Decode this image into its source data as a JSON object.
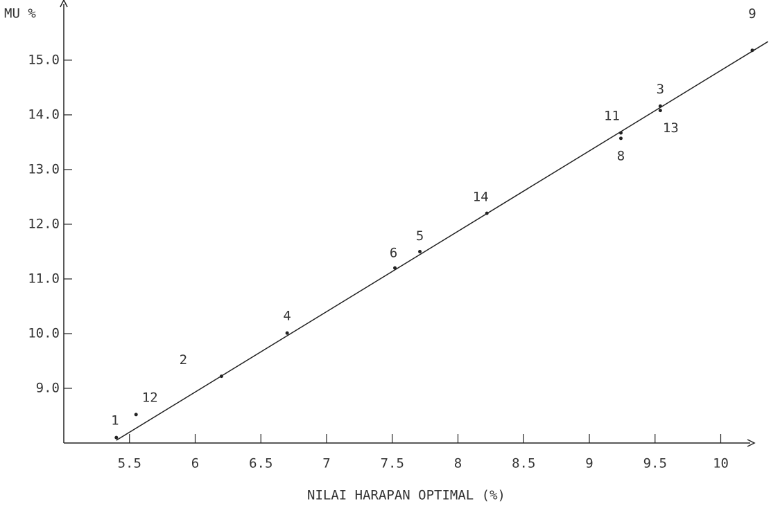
{
  "chart_data": {
    "type": "scatter",
    "x_label": "NILAI HARAPAN OPTIMAL (%)",
    "y_label": "MU %",
    "xlim": [
      5,
      10.24
    ],
    "ylim": [
      8,
      16.1
    ],
    "xticks": [
      5.5,
      6,
      6.5,
      7,
      7.5,
      8,
      8.5,
      9,
      9.5,
      10
    ],
    "yticks": [
      {
        "value": 9,
        "label": "9.0"
      },
      {
        "value": 10,
        "label": "10.0"
      },
      {
        "value": 11,
        "label": "11.0"
      },
      {
        "value": 12,
        "label": "12.0"
      },
      {
        "value": 13,
        "label": "13.0"
      },
      {
        "value": 14,
        "label": "14.0"
      },
      {
        "value": 15,
        "label": "15.0"
      }
    ],
    "color": "#222222",
    "series": [
      {
        "labels": [
          "1",
          "12",
          "2",
          "4",
          "6",
          "5",
          "14",
          "11",
          "8",
          "3",
          "13",
          "9"
        ],
        "x": [
          5.4,
          5.55,
          6.2,
          6.7,
          7.52,
          7.71,
          8.22,
          9.24,
          9.24,
          9.54,
          9.54,
          10.24
        ],
        "values": [
          8.1,
          8.52,
          9.22,
          10.01,
          11.2,
          11.5,
          12.2,
          13.67,
          13.57,
          14.16,
          14.08,
          15.18
        ]
      }
    ],
    "trend_line": {
      "x": [
        5.4,
        10.36
      ],
      "values": [
        8.05,
        15.34
      ]
    }
  }
}
